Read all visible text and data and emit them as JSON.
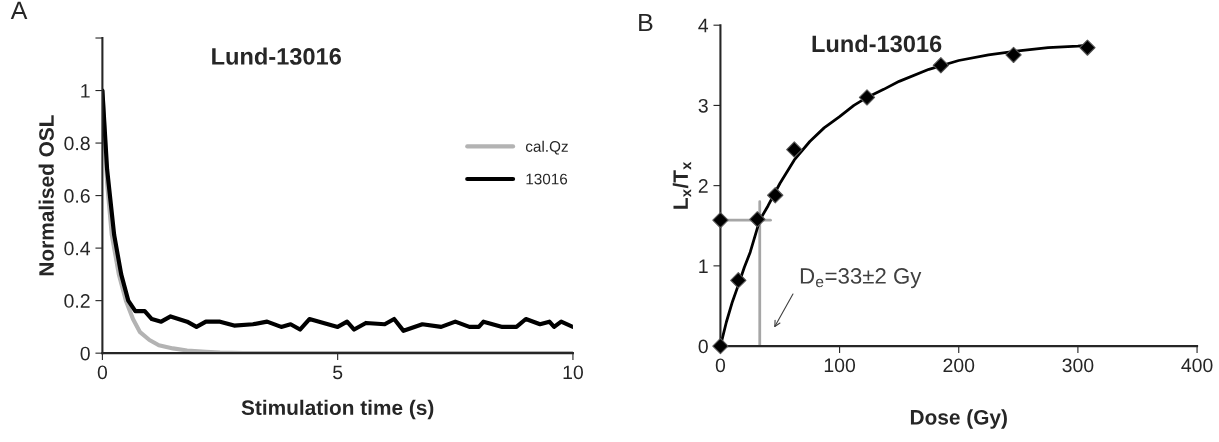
{
  "chart_data": [
    {
      "type": "line",
      "title": "Lund-13016",
      "xlabel": "Stimulation time (s)",
      "ylabel": "Normalised OSL",
      "annotations": [
        "A"
      ],
      "xlim": [
        0,
        10
      ],
      "xticks": [
        0,
        5,
        10
      ],
      "ylim": [
        0,
        1.2
      ],
      "yticks": [
        0,
        0.2,
        0.4,
        0.6,
        0.8,
        1,
        {
          "value": 1.2,
          "label": null
        }
      ],
      "legend": "right",
      "grid": false,
      "marker": "none",
      "series": [
        {
          "name": "cal.Qz",
          "color": "#b3b3b3",
          "x": [
            0,
            0.1,
            0.2,
            0.35,
            0.5,
            0.65,
            0.8,
            1.0,
            1.2,
            1.5,
            1.8,
            2.2,
            2.5,
            3,
            4,
            5,
            6,
            7,
            8,
            9,
            10
          ],
          "values": [
            1,
            0.65,
            0.45,
            0.3,
            0.2,
            0.13,
            0.08,
            0.05,
            0.03,
            0.018,
            0.01,
            0.005,
            0.002,
            0,
            0,
            0,
            0,
            0,
            0,
            0,
            0
          ]
        },
        {
          "name": "13016",
          "color": "#000000",
          "x": [
            0,
            0.1,
            0.25,
            0.4,
            0.55,
            0.7,
            0.9,
            1.05,
            1.25,
            1.45,
            1.8,
            2.0,
            2.2,
            2.5,
            2.8,
            3.2,
            3.5,
            3.8,
            4.0,
            4.2,
            4.4,
            4.7,
            5.0,
            5.2,
            5.35,
            5.6,
            6.0,
            6.2,
            6.4,
            6.8,
            7.2,
            7.5,
            7.8,
            8.0,
            8.1,
            8.5,
            8.8,
            9.0,
            9.3,
            9.5,
            9.6,
            9.75,
            10
          ],
          "values": [
            1,
            0.7,
            0.45,
            0.3,
            0.2,
            0.16,
            0.16,
            0.13,
            0.12,
            0.14,
            0.12,
            0.1,
            0.12,
            0.12,
            0.105,
            0.11,
            0.12,
            0.1,
            0.11,
            0.09,
            0.13,
            0.115,
            0.1,
            0.12,
            0.09,
            0.115,
            0.11,
            0.13,
            0.085,
            0.11,
            0.1,
            0.12,
            0.1,
            0.1,
            0.12,
            0.1,
            0.1,
            0.13,
            0.11,
            0.12,
            0.1,
            0.12,
            0.1
          ]
        }
      ]
    },
    {
      "type": "scatter",
      "title": "Lund-13016",
      "xlabel": "Dose (Gy)",
      "ylabel": "L$_{x}$/T$_{x}$",
      "annotations": [
        "B",
        "D$_{e}$=33±2 Gy"
      ],
      "xlim": [
        0,
        400
      ],
      "xticks": [
        0,
        100,
        200,
        300,
        400
      ],
      "ylim": [
        0,
        4
      ],
      "yticks": [
        0,
        1,
        2,
        3,
        4
      ],
      "legend": false,
      "grid": false,
      "series": [
        {
          "type": "line",
          "color": "#a6a6a6",
          "marker": "none",
          "x": [
            0,
            42
          ],
          "values": [
            1.57,
            1.57
          ]
        },
        {
          "type": "line",
          "color": "#a6a6a6",
          "marker": "none",
          "x": [
            33,
            33
          ],
          "values": [
            0,
            1.8
          ]
        },
        {
          "type": "line",
          "color": "#000000",
          "marker": "none",
          "x": [
            0,
            5,
            10,
            15,
            20,
            25,
            33,
            40,
            50,
            62,
            75,
            87,
            100,
            112,
            123,
            137,
            150,
            175,
            200,
            225,
            250,
            275,
            300,
            308
          ],
          "values": [
            0,
            0.3,
            0.55,
            0.76,
            0.98,
            1.17,
            1.57,
            1.75,
            2.03,
            2.32,
            2.55,
            2.72,
            2.86,
            3.0,
            3.1,
            3.2,
            3.3,
            3.45,
            3.56,
            3.63,
            3.68,
            3.72,
            3.74,
            3.75
          ]
        },
        {
          "type": "scatter",
          "color": "#000000",
          "marker": "diamond",
          "x": [
            0,
            0,
            15,
            31,
            46,
            62,
            123,
            185,
            246,
            308
          ],
          "values": [
            0,
            1.57,
            0.82,
            1.58,
            1.88,
            2.45,
            3.1,
            3.5,
            3.63,
            3.72
          ]
        }
      ]
    }
  ]
}
